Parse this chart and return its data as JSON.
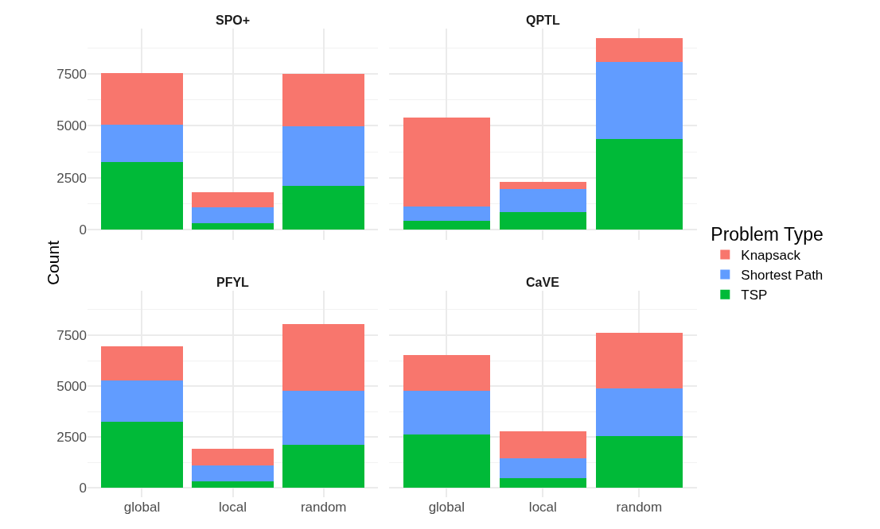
{
  "chart_data": [
    {
      "type": "bar",
      "title": "SPO+",
      "ylabel": "Count",
      "legend_title": "Problem Type",
      "legend": "right",
      "stacked": true,
      "grid": true,
      "tick_labels": "y",
      "categories": [
        "global",
        "local",
        "random"
      ],
      "ylim": [
        -460,
        9670
      ],
      "yticks": [
        0,
        {
          "value": 1250,
          "label": null
        },
        2500,
        {
          "value": 3750,
          "label": null
        },
        5000,
        {
          "value": 6250,
          "label": null
        },
        7500,
        {
          "value": 8750,
          "label": null
        }
      ],
      "series": [
        {
          "name": "TSP",
          "color": "#00ba38",
          "values": [
            3250,
            330,
            2100
          ]
        },
        {
          "name": "Shortest Path",
          "color": "#619cff",
          "values": [
            1810,
            740,
            2860
          ]
        },
        {
          "name": "Knapsack",
          "color": "#f8766d",
          "values": [
            2490,
            750,
            2550
          ]
        }
      ]
    },
    {
      "type": "bar",
      "title": "QPTL",
      "stacked": true,
      "grid": true,
      "tick_labels": false,
      "categories": [
        "global",
        "local",
        "random"
      ],
      "ylim": [
        -460,
        9670
      ],
      "yticks": [
        0,
        {
          "value": 1250,
          "label": null
        },
        2500,
        {
          "value": 3750,
          "label": null
        },
        5000,
        {
          "value": 6250,
          "label": null
        },
        7500,
        {
          "value": 8750,
          "label": null
        }
      ],
      "series": [
        {
          "name": "TSP",
          "color": "#00ba38",
          "values": [
            440,
            840,
            4380
          ]
        },
        {
          "name": "Shortest Path",
          "color": "#619cff",
          "values": [
            680,
            1110,
            3670
          ]
        },
        {
          "name": "Knapsack",
          "color": "#f8766d",
          "values": [
            4280,
            360,
            1160
          ]
        }
      ]
    },
    {
      "type": "bar",
      "title": "PFYL",
      "stacked": true,
      "grid": true,
      "categories": [
        "global",
        "local",
        "random"
      ],
      "ylim": [
        -460,
        9670
      ],
      "yticks": [
        0,
        {
          "value": 1250,
          "label": null
        },
        2500,
        {
          "value": 3750,
          "label": null
        },
        5000,
        {
          "value": 6250,
          "label": null
        },
        7500,
        {
          "value": 8750,
          "label": null
        }
      ],
      "series": [
        {
          "name": "TSP",
          "color": "#00ba38",
          "values": [
            3250,
            330,
            2100
          ]
        },
        {
          "name": "Shortest Path",
          "color": "#619cff",
          "values": [
            2010,
            790,
            2660
          ]
        },
        {
          "name": "Knapsack",
          "color": "#f8766d",
          "values": [
            1690,
            810,
            3280
          ]
        }
      ]
    },
    {
      "type": "bar",
      "title": "CaVE",
      "stacked": true,
      "grid": true,
      "tick_labels": "x",
      "categories": [
        "global",
        "local",
        "random"
      ],
      "ylim": [
        -460,
        9670
      ],
      "yticks": [
        0,
        {
          "value": 1250,
          "label": null
        },
        2500,
        {
          "value": 3750,
          "label": null
        },
        5000,
        {
          "value": 6250,
          "label": null
        },
        7500,
        {
          "value": 8750,
          "label": null
        }
      ],
      "series": [
        {
          "name": "TSP",
          "color": "#00ba38",
          "values": [
            2610,
            460,
            2540
          ]
        },
        {
          "name": "Shortest Path",
          "color": "#619cff",
          "values": [
            2150,
            980,
            2350
          ]
        },
        {
          "name": "Knapsack",
          "color": "#f8766d",
          "values": [
            1770,
            1320,
            2730
          ]
        }
      ]
    }
  ]
}
